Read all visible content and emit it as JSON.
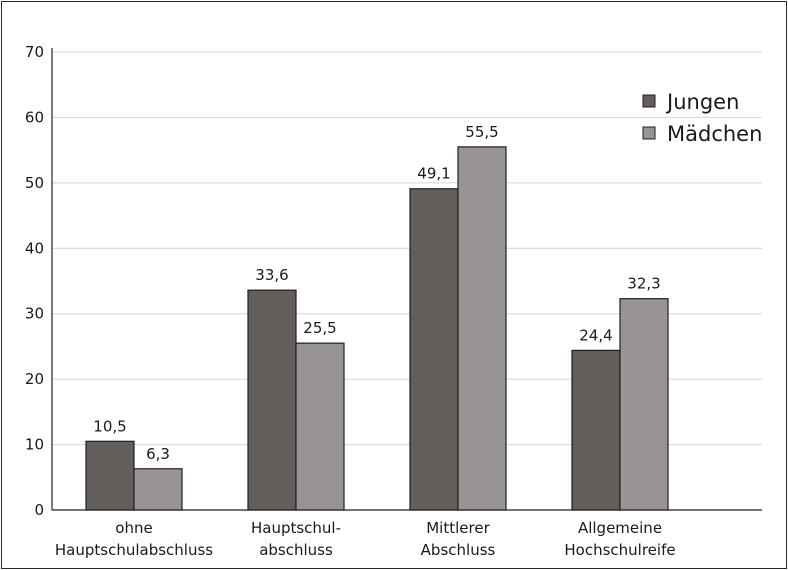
{
  "chart_data": {
    "type": "bar",
    "categories": [
      [
        "ohne",
        "Hauptschulabschluss"
      ],
      [
        "Hauptschul-",
        "abschluss"
      ],
      [
        "Mittlerer",
        "Abschluss"
      ],
      [
        "Allgemeine",
        "Hochschulreife"
      ]
    ],
    "series": [
      {
        "name": "Jungen",
        "values": [
          10.5,
          33.6,
          49.1,
          24.4
        ],
        "labels": [
          "10,5",
          "33,6",
          "49,1",
          "24,4"
        ],
        "color": "#635e5c"
      },
      {
        "name": "Mädchen",
        "values": [
          6.3,
          25.5,
          55.5,
          32.3
        ],
        "labels": [
          "6,3",
          "25,5",
          "55,5",
          "32,3"
        ],
        "color": "#999494"
      }
    ],
    "ylim": [
      0,
      70
    ],
    "yticks": [
      0,
      10,
      20,
      30,
      40,
      50,
      60,
      70
    ],
    "grid": true,
    "legend_position": "top-right",
    "title": "",
    "xlabel": "",
    "ylabel": ""
  }
}
